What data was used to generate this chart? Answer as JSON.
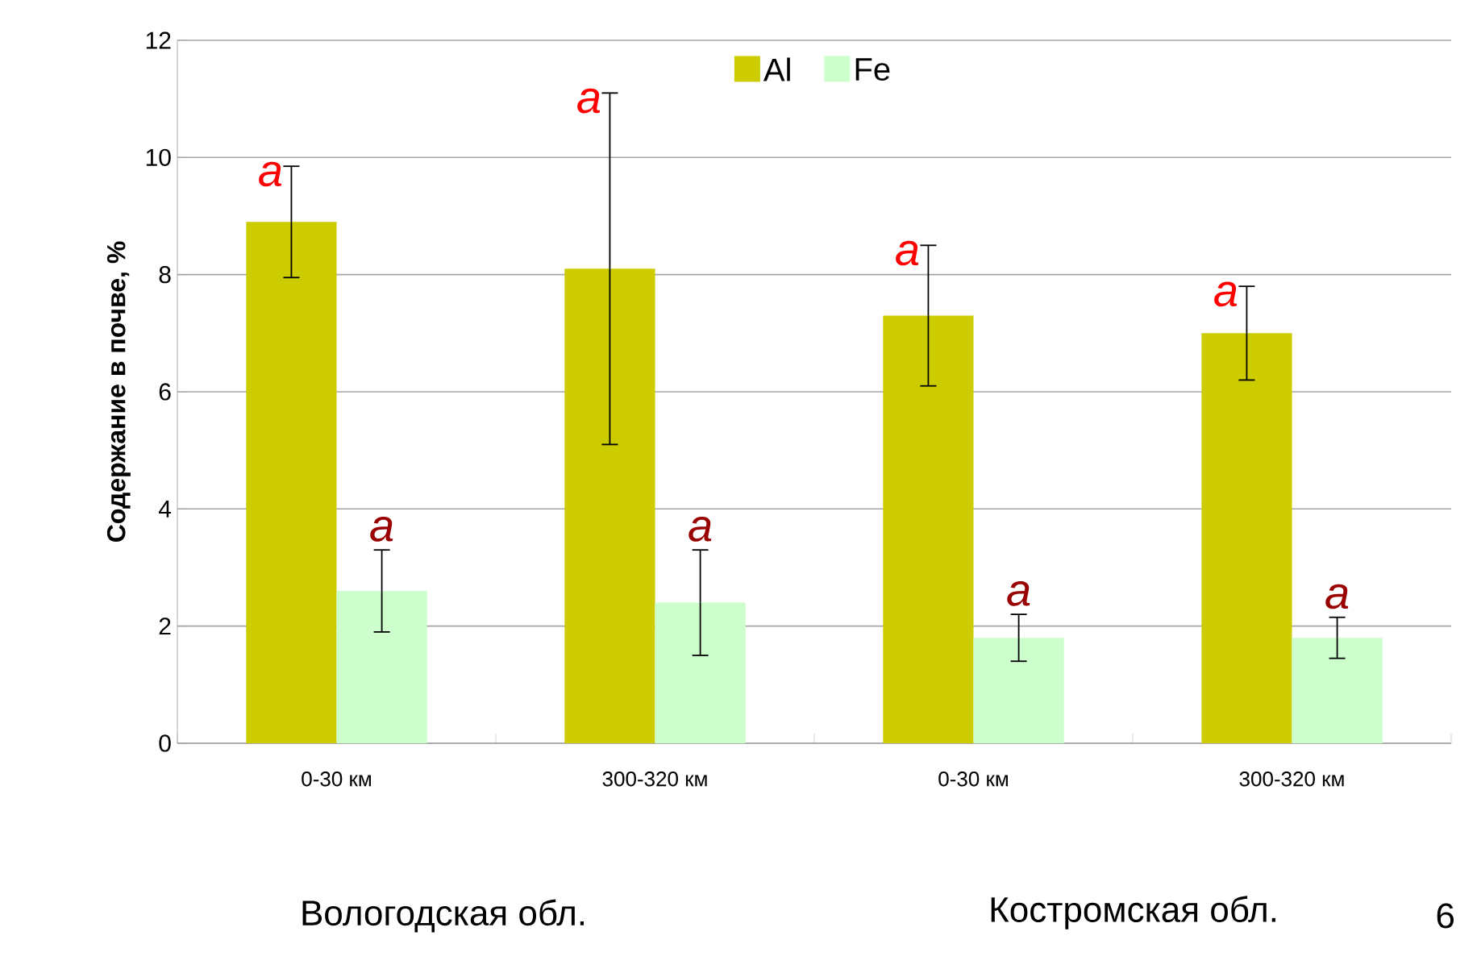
{
  "chart_data": {
    "type": "bar",
    "ylabel": "Содержание в почве, %",
    "categories": [
      "0-30 км",
      "300-320 км",
      "0-30 км",
      "300-320 км"
    ],
    "series": [
      {
        "name": "Al",
        "color": "#cccc00",
        "values": [
          8.9,
          8.1,
          7.3,
          7.0
        ],
        "errors": [
          0.95,
          3.0,
          1.2,
          0.8
        ]
      },
      {
        "name": "Fe",
        "color": "#ccffcc",
        "values": [
          2.6,
          2.4,
          1.8,
          1.8
        ],
        "errors": [
          0.7,
          0.9,
          0.4,
          0.35
        ]
      }
    ],
    "ylim": [
      0,
      12
    ],
    "yticks": [
      0,
      2,
      4,
      6,
      8,
      10,
      12
    ],
    "grid": "y",
    "legend": "top",
    "annotations": [
      "a",
      "a",
      "a",
      "a",
      "a",
      "a",
      "a",
      "a",
      "Вологодская обл.",
      "Костромская обл.",
      "6"
    ]
  }
}
